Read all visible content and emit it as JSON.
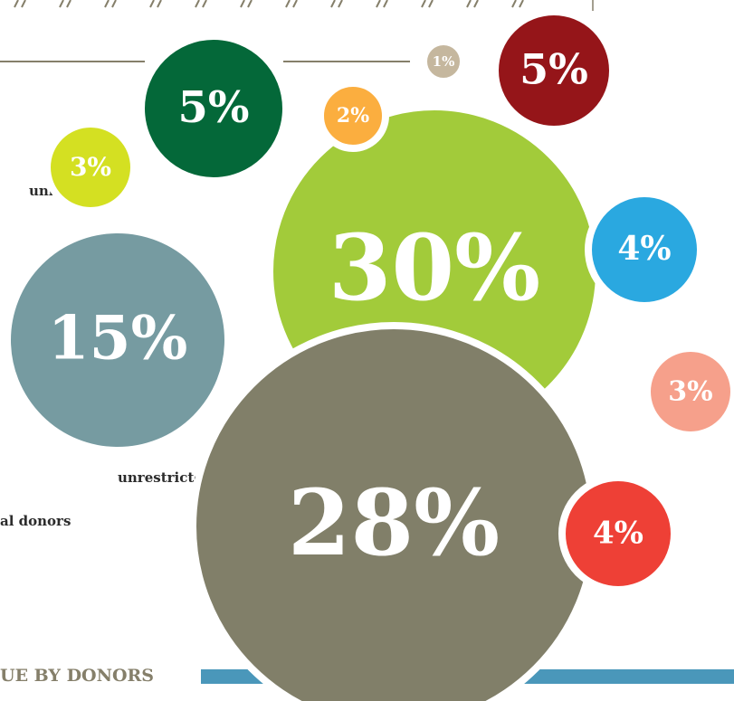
{
  "chart_data": {
    "type": "bubble",
    "values": [
      30,
      28,
      15,
      5,
      3,
      2,
      1,
      5,
      4,
      3,
      4
    ],
    "value_labels": [
      "30%",
      "28%",
      "15%",
      "5%",
      "3%",
      "2%",
      "1%",
      "5%",
      "4%",
      "3%",
      "4%"
    ],
    "colors": [
      "#a2cb3a",
      "#817f69",
      "#769ba1",
      "#046839",
      "#d4e022",
      "#fbae3f",
      "#c5b79e",
      "#951519",
      "#2aa8e0",
      "#f6a08b",
      "#ee4036"
    ],
    "texts": [
      "unity",
      "unrestricted",
      "al donors",
      "UE BY DONORS"
    ]
  }
}
